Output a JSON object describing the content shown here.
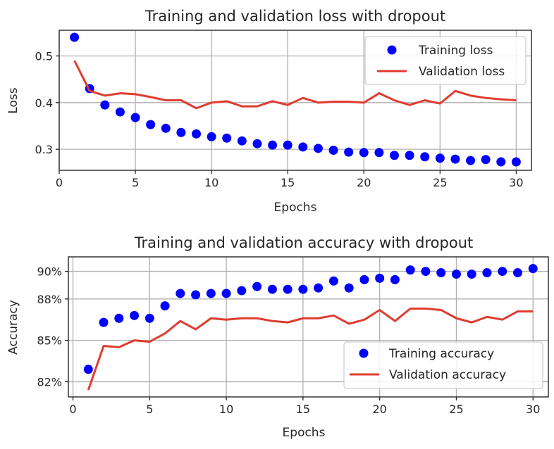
{
  "colors": {
    "training": "#0000ff",
    "validation": "#e03c31"
  },
  "chart_data": [
    {
      "type": "line",
      "title": "Training and validation loss with dropout",
      "xlabel": "Epochs",
      "ylabel": "Loss",
      "xlim": [
        0,
        31
      ],
      "ylim": [
        0.255,
        0.555
      ],
      "xticks": [
        0,
        5,
        10,
        15,
        20,
        25,
        30
      ],
      "yticks": [
        0.3,
        0.4,
        0.5
      ],
      "ytick_labels": [
        "0.3",
        "0.4",
        "0.5"
      ],
      "grid": true,
      "legend_position": "top-right",
      "x": [
        1,
        2,
        3,
        4,
        5,
        6,
        7,
        8,
        9,
        10,
        11,
        12,
        13,
        14,
        15,
        16,
        17,
        18,
        19,
        20,
        21,
        22,
        23,
        24,
        25,
        26,
        27,
        28,
        29,
        30
      ],
      "series": [
        {
          "name": "Training loss",
          "style": "dots",
          "color": "#0000ff",
          "values": [
            0.54,
            0.43,
            0.395,
            0.38,
            0.368,
            0.353,
            0.345,
            0.336,
            0.333,
            0.327,
            0.324,
            0.318,
            0.312,
            0.309,
            0.309,
            0.305,
            0.302,
            0.298,
            0.294,
            0.293,
            0.293,
            0.287,
            0.287,
            0.284,
            0.281,
            0.279,
            0.276,
            0.278,
            0.273,
            0.273
          ]
        },
        {
          "name": "Validation loss",
          "style": "line",
          "color": "#e03c31",
          "values": [
            0.49,
            0.425,
            0.415,
            0.42,
            0.418,
            0.412,
            0.405,
            0.405,
            0.388,
            0.4,
            0.403,
            0.392,
            0.392,
            0.403,
            0.395,
            0.41,
            0.4,
            0.402,
            0.402,
            0.4,
            0.42,
            0.405,
            0.395,
            0.405,
            0.398,
            0.425,
            0.415,
            0.41,
            0.407,
            0.405
          ]
        }
      ]
    },
    {
      "type": "line",
      "title": "Training and validation accuracy with dropout",
      "xlabel": "Epochs",
      "ylabel": "Accuracy",
      "xlim": [
        -0.3,
        31
      ],
      "ylim": [
        0.809,
        0.9105
      ],
      "xticks": [
        0,
        5,
        10,
        15,
        20,
        25,
        30
      ],
      "yticks": [
        0.82,
        0.85,
        0.88,
        0.9
      ],
      "ytick_labels": [
        "82%",
        "85%",
        "88%",
        "90%"
      ],
      "grid": true,
      "legend_position": "bottom-right",
      "x": [
        1,
        2,
        3,
        4,
        5,
        6,
        7,
        8,
        9,
        10,
        11,
        12,
        13,
        14,
        15,
        16,
        17,
        18,
        19,
        20,
        21,
        22,
        23,
        24,
        25,
        26,
        27,
        28,
        29,
        30
      ],
      "series": [
        {
          "name": "Training accuracy",
          "style": "dots",
          "color": "#0000ff",
          "values": [
            0.829,
            0.863,
            0.866,
            0.868,
            0.866,
            0.875,
            0.884,
            0.883,
            0.884,
            0.884,
            0.886,
            0.889,
            0.887,
            0.887,
            0.887,
            0.888,
            0.893,
            0.888,
            0.894,
            0.895,
            0.894,
            0.901,
            0.9,
            0.899,
            0.898,
            0.898,
            0.899,
            0.9,
            0.899,
            0.902
          ]
        },
        {
          "name": "Validation accuracy",
          "style": "line",
          "color": "#e03c31",
          "values": [
            0.814,
            0.846,
            0.845,
            0.85,
            0.849,
            0.855,
            0.864,
            0.858,
            0.866,
            0.865,
            0.866,
            0.866,
            0.864,
            0.863,
            0.866,
            0.866,
            0.868,
            0.862,
            0.865,
            0.872,
            0.864,
            0.873,
            0.873,
            0.872,
            0.866,
            0.863,
            0.867,
            0.865,
            0.871,
            0.871
          ]
        }
      ]
    }
  ]
}
